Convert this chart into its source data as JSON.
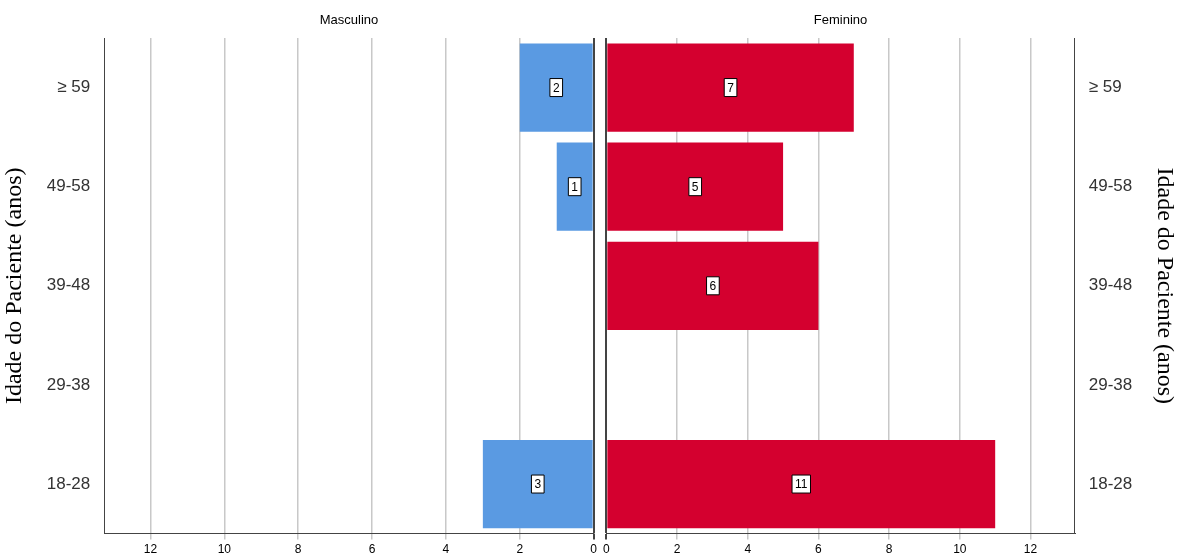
{
  "chart_data": [
    {
      "type": "bar",
      "orientation": "horizontal",
      "title": "Masculino",
      "ylabel": "Idade do Paciente (anos)",
      "categories": [
        "≥ 59",
        "49-58",
        "39-48",
        "29-38",
        "18-28"
      ],
      "series": [
        {
          "color": "#5a9ae2",
          "values": [
            2,
            1,
            null,
            null,
            3
          ]
        }
      ],
      "xlim": [
        13.25,
        0
      ],
      "xticks": [
        12,
        10,
        8,
        6,
        4,
        2,
        0
      ],
      "grid": "x",
      "data_labels": true
    },
    {
      "type": "bar",
      "orientation": "horizontal",
      "title": "Feminino",
      "ylabel": "Idade do Paciente (anos)",
      "categories": [
        "≥ 59",
        "49-58",
        "39-48",
        "29-38",
        "18-28"
      ],
      "series": [
        {
          "color": "#d4002f",
          "values": [
            7,
            5,
            6,
            null,
            11
          ]
        }
      ],
      "xlim": [
        0,
        13.25
      ],
      "xticks": [
        0,
        2,
        4,
        6,
        8,
        10,
        12
      ],
      "grid": "x",
      "data_labels": true
    }
  ]
}
